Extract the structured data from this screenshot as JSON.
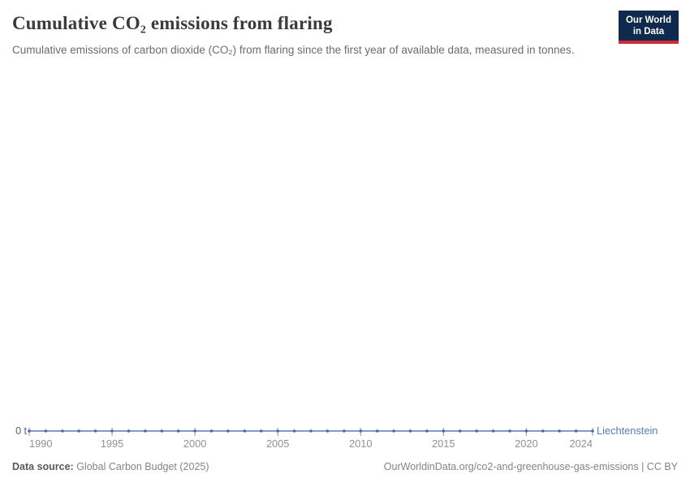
{
  "header": {
    "title": "Cumulative CO₂ emissions from flaring",
    "subtitle": "Cumulative emissions of carbon dioxide (CO₂) from flaring since the first year of available data, measured in tonnes.",
    "logo": {
      "line1": "Our World",
      "line2": "in Data"
    }
  },
  "chart_data": {
    "type": "line",
    "title": "Cumulative CO₂ emissions from flaring",
    "x": [
      1990,
      1991,
      1992,
      1993,
      1994,
      1995,
      1996,
      1997,
      1998,
      1999,
      2000,
      2001,
      2002,
      2003,
      2004,
      2005,
      2006,
      2007,
      2008,
      2009,
      2010,
      2011,
      2012,
      2013,
      2014,
      2015,
      2016,
      2017,
      2018,
      2019,
      2020,
      2021,
      2022,
      2023,
      2024
    ],
    "series": [
      {
        "name": "Liechtenstein",
        "values": [
          0,
          0,
          0,
          0,
          0,
          0,
          0,
          0,
          0,
          0,
          0,
          0,
          0,
          0,
          0,
          0,
          0,
          0,
          0,
          0,
          0,
          0,
          0,
          0,
          0,
          0,
          0,
          0,
          0,
          0,
          0,
          0,
          0,
          0,
          0
        ]
      }
    ],
    "x_ticks": [
      1990,
      1995,
      2000,
      2005,
      2010,
      2015,
      2020,
      2024
    ],
    "x_range": [
      1990,
      2024
    ],
    "ylim": [
      0,
      0
    ],
    "y_zero_label": "0 t",
    "xlabel": "",
    "ylabel": "",
    "grid": false,
    "legend_position": "end-of-line",
    "units": "tonnes"
  },
  "footer": {
    "source_label": "Data source:",
    "source_value": " Global Carbon Budget (2025)",
    "credit": "OurWorldinData.org/co2-and-greenhouse-gas-emissions | CC BY"
  },
  "colors": {
    "line": "#5b7bb2",
    "marker": "#4c6a9c",
    "tick": "#7d96c2",
    "series_label": "#577cb5",
    "logo_bg": "#102a4d",
    "logo_red": "#d02d3a"
  }
}
